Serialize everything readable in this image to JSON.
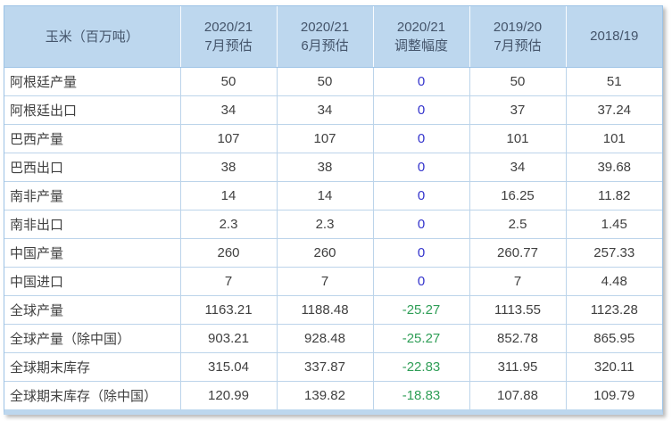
{
  "colors": {
    "header_bg": "#bdd7ee",
    "header_text": "#44546a",
    "body_text": "#404040",
    "zero_text": "#3333cc",
    "negative_text": "#2f9e57",
    "inner_border": "#bcd4ea",
    "outer_border": "#9dc3e6"
  },
  "chart_data": {
    "type": "table",
    "title": "玉米（百万吨）",
    "corner_header": "玉米（百万吨）",
    "columns": [
      {
        "line1": "2020/21",
        "line2": "7月预估"
      },
      {
        "line1": "2020/21",
        "line2": "6月预估"
      },
      {
        "line1": "2020/21",
        "line2": "调整幅度"
      },
      {
        "line1": "2019/20",
        "line2": "7月预估"
      },
      {
        "line1": "2018/19",
        "line2": ""
      }
    ],
    "rows": [
      {
        "label": "阿根廷产量",
        "values": [
          "50",
          "50",
          "0",
          "50",
          "51"
        ]
      },
      {
        "label": "阿根廷出口",
        "values": [
          "34",
          "34",
          "0",
          "37",
          "37.24"
        ]
      },
      {
        "label": "巴西产量",
        "values": [
          "107",
          "107",
          "0",
          "101",
          "101"
        ]
      },
      {
        "label": "巴西出口",
        "values": [
          "38",
          "38",
          "0",
          "34",
          "39.68"
        ]
      },
      {
        "label": "南非产量",
        "values": [
          "14",
          "14",
          "0",
          "16.25",
          "11.82"
        ]
      },
      {
        "label": "南非出口",
        "values": [
          "2.3",
          "2.3",
          "0",
          "2.5",
          "1.45"
        ]
      },
      {
        "label": "中国产量",
        "values": [
          "260",
          "260",
          "0",
          "260.77",
          "257.33"
        ]
      },
      {
        "label": "中国进口",
        "values": [
          "7",
          "7",
          "0",
          "7",
          "4.48"
        ]
      },
      {
        "label": "全球产量",
        "values": [
          "1163.21",
          "1188.48",
          "-25.27",
          "1113.55",
          "1123.28"
        ]
      },
      {
        "label": "全球产量（除中国）",
        "values": [
          "903.21",
          "928.48",
          "-25.27",
          "852.78",
          "865.95"
        ]
      },
      {
        "label": "全球期末库存",
        "values": [
          "315.04",
          "337.87",
          "-22.83",
          "311.95",
          "320.11"
        ]
      },
      {
        "label": "全球期末库存（除中国）",
        "values": [
          "120.99",
          "139.82",
          "-18.83",
          "107.88",
          "109.79"
        ]
      }
    ]
  }
}
